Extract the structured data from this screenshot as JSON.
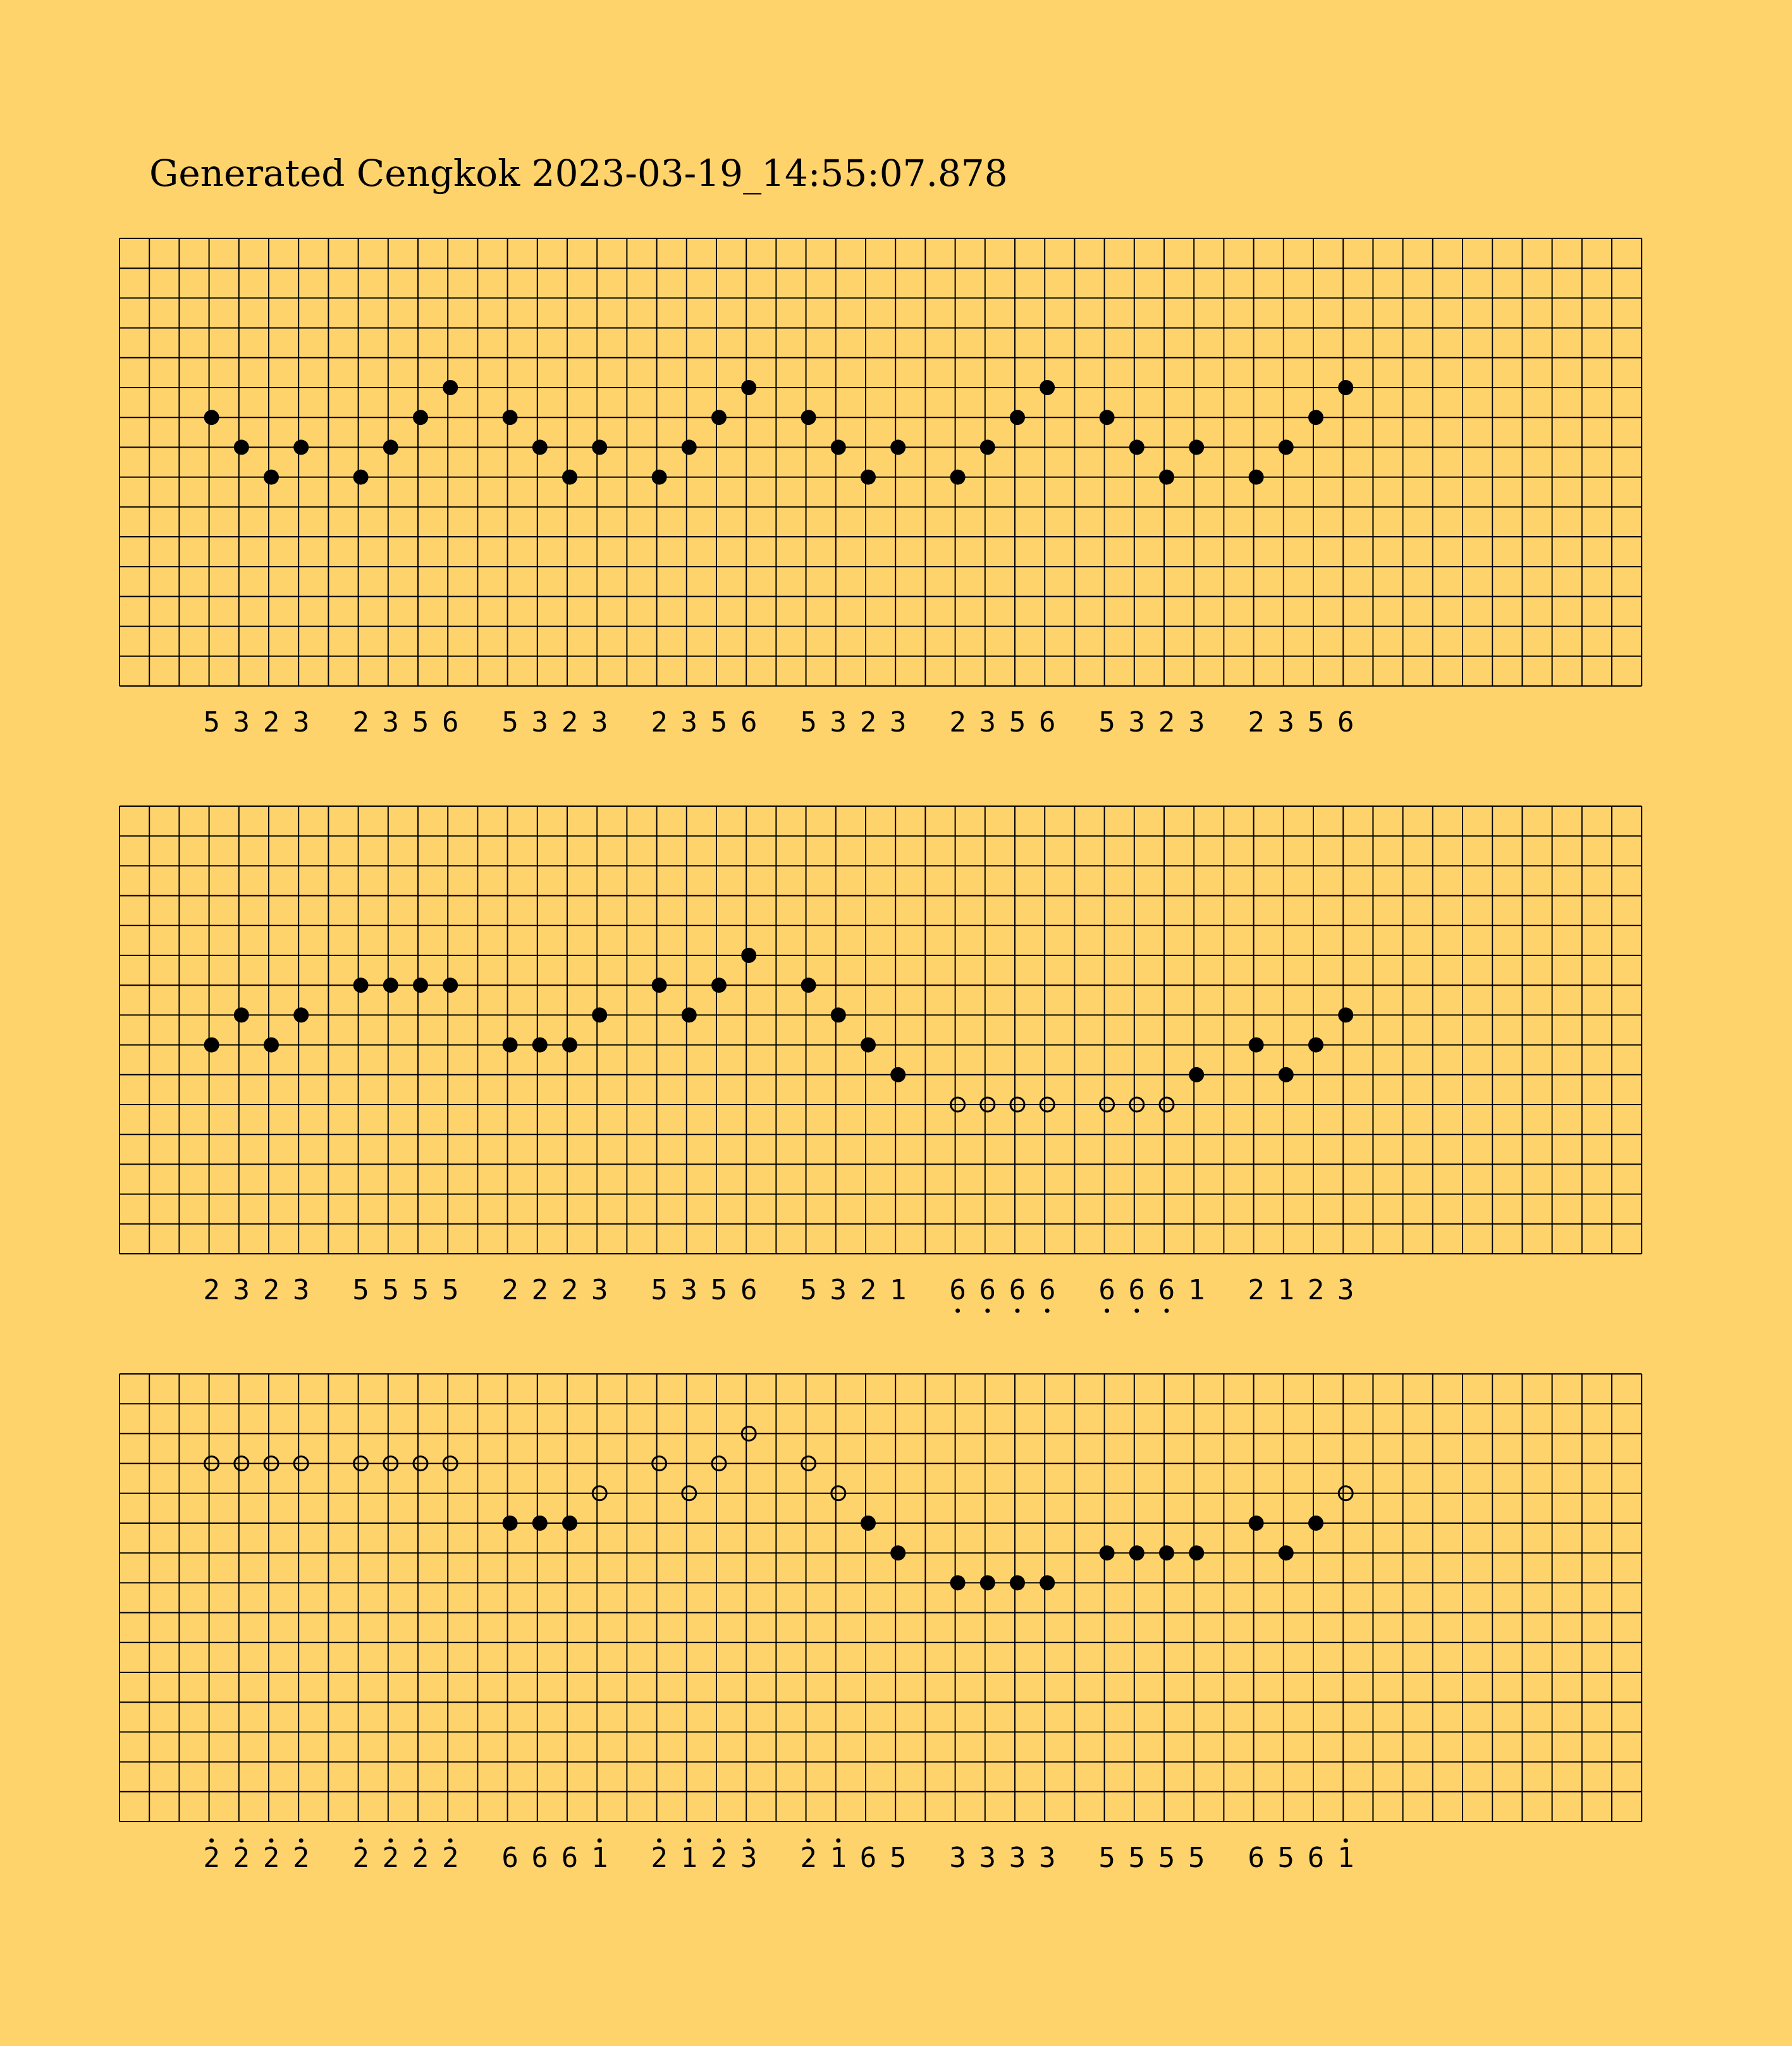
{
  "title": "Generated Cengkok 2023-03-19_14:55:07.878",
  "colors": {
    "background": "#ffd36b",
    "ink": "#000000"
  },
  "notation": {
    "octave_marks": {
      "above_dot": "high octave",
      "below_dot": "low octave"
    },
    "note_marker_style": {
      "filled": "filled-circle",
      "hollow": "hollow-circle"
    }
  },
  "staves": [
    {
      "groups": [
        {
          "notes": [
            {
              "digit": "5",
              "row": 6,
              "style": "filled",
              "octave": 0
            },
            {
              "digit": "3",
              "row": 7,
              "style": "filled",
              "octave": 0
            },
            {
              "digit": "2",
              "row": 8,
              "style": "filled",
              "octave": 0
            },
            {
              "digit": "3",
              "row": 7,
              "style": "filled",
              "octave": 0
            }
          ]
        },
        {
          "notes": [
            {
              "digit": "2",
              "row": 8,
              "style": "filled",
              "octave": 0
            },
            {
              "digit": "3",
              "row": 7,
              "style": "filled",
              "octave": 0
            },
            {
              "digit": "5",
              "row": 6,
              "style": "filled",
              "octave": 0
            },
            {
              "digit": "6",
              "row": 5,
              "style": "filled",
              "octave": 0
            }
          ]
        },
        {
          "notes": [
            {
              "digit": "5",
              "row": 6,
              "style": "filled",
              "octave": 0
            },
            {
              "digit": "3",
              "row": 7,
              "style": "filled",
              "octave": 0
            },
            {
              "digit": "2",
              "row": 8,
              "style": "filled",
              "octave": 0
            },
            {
              "digit": "3",
              "row": 7,
              "style": "filled",
              "octave": 0
            }
          ]
        },
        {
          "notes": [
            {
              "digit": "2",
              "row": 8,
              "style": "filled",
              "octave": 0
            },
            {
              "digit": "3",
              "row": 7,
              "style": "filled",
              "octave": 0
            },
            {
              "digit": "5",
              "row": 6,
              "style": "filled",
              "octave": 0
            },
            {
              "digit": "6",
              "row": 5,
              "style": "filled",
              "octave": 0
            }
          ]
        },
        {
          "notes": [
            {
              "digit": "5",
              "row": 6,
              "style": "filled",
              "octave": 0
            },
            {
              "digit": "3",
              "row": 7,
              "style": "filled",
              "octave": 0
            },
            {
              "digit": "2",
              "row": 8,
              "style": "filled",
              "octave": 0
            },
            {
              "digit": "3",
              "row": 7,
              "style": "filled",
              "octave": 0
            }
          ]
        },
        {
          "notes": [
            {
              "digit": "2",
              "row": 8,
              "style": "filled",
              "octave": 0
            },
            {
              "digit": "3",
              "row": 7,
              "style": "filled",
              "octave": 0
            },
            {
              "digit": "5",
              "row": 6,
              "style": "filled",
              "octave": 0
            },
            {
              "digit": "6",
              "row": 5,
              "style": "filled",
              "octave": 0
            }
          ]
        },
        {
          "notes": [
            {
              "digit": "5",
              "row": 6,
              "style": "filled",
              "octave": 0
            },
            {
              "digit": "3",
              "row": 7,
              "style": "filled",
              "octave": 0
            },
            {
              "digit": "2",
              "row": 8,
              "style": "filled",
              "octave": 0
            },
            {
              "digit": "3",
              "row": 7,
              "style": "filled",
              "octave": 0
            }
          ]
        },
        {
          "notes": [
            {
              "digit": "2",
              "row": 8,
              "style": "filled",
              "octave": 0
            },
            {
              "digit": "3",
              "row": 7,
              "style": "filled",
              "octave": 0
            },
            {
              "digit": "5",
              "row": 6,
              "style": "filled",
              "octave": 0
            },
            {
              "digit": "6",
              "row": 5,
              "style": "filled",
              "octave": 0
            }
          ]
        }
      ]
    },
    {
      "groups": [
        {
          "notes": [
            {
              "digit": "2",
              "row": 8,
              "style": "filled",
              "octave": 0
            },
            {
              "digit": "3",
              "row": 7,
              "style": "filled",
              "octave": 0
            },
            {
              "digit": "2",
              "row": 8,
              "style": "filled",
              "octave": 0
            },
            {
              "digit": "3",
              "row": 7,
              "style": "filled",
              "octave": 0
            }
          ]
        },
        {
          "notes": [
            {
              "digit": "5",
              "row": 6,
              "style": "filled",
              "octave": 0
            },
            {
              "digit": "5",
              "row": 6,
              "style": "filled",
              "octave": 0
            },
            {
              "digit": "5",
              "row": 6,
              "style": "filled",
              "octave": 0
            },
            {
              "digit": "5",
              "row": 6,
              "style": "filled",
              "octave": 0
            }
          ]
        },
        {
          "notes": [
            {
              "digit": "2",
              "row": 8,
              "style": "filled",
              "octave": 0
            },
            {
              "digit": "2",
              "row": 8,
              "style": "filled",
              "octave": 0
            },
            {
              "digit": "2",
              "row": 8,
              "style": "filled",
              "octave": 0
            },
            {
              "digit": "3",
              "row": 7,
              "style": "filled",
              "octave": 0
            }
          ]
        },
        {
          "notes": [
            {
              "digit": "5",
              "row": 6,
              "style": "filled",
              "octave": 0
            },
            {
              "digit": "3",
              "row": 7,
              "style": "filled",
              "octave": 0
            },
            {
              "digit": "5",
              "row": 6,
              "style": "filled",
              "octave": 0
            },
            {
              "digit": "6",
              "row": 5,
              "style": "filled",
              "octave": 0
            }
          ]
        },
        {
          "notes": [
            {
              "digit": "5",
              "row": 6,
              "style": "filled",
              "octave": 0
            },
            {
              "digit": "3",
              "row": 7,
              "style": "filled",
              "octave": 0
            },
            {
              "digit": "2",
              "row": 8,
              "style": "filled",
              "octave": 0
            },
            {
              "digit": "1",
              "row": 9,
              "style": "filled",
              "octave": 0
            }
          ]
        },
        {
          "notes": [
            {
              "digit": "6",
              "row": 10,
              "style": "hollow",
              "octave": -1
            },
            {
              "digit": "6",
              "row": 10,
              "style": "hollow",
              "octave": -1
            },
            {
              "digit": "6",
              "row": 10,
              "style": "hollow",
              "octave": -1
            },
            {
              "digit": "6",
              "row": 10,
              "style": "hollow",
              "octave": -1
            }
          ]
        },
        {
          "notes": [
            {
              "digit": "6",
              "row": 10,
              "style": "hollow",
              "octave": -1
            },
            {
              "digit": "6",
              "row": 10,
              "style": "hollow",
              "octave": -1
            },
            {
              "digit": "6",
              "row": 10,
              "style": "hollow",
              "octave": -1
            },
            {
              "digit": "1",
              "row": 9,
              "style": "filled",
              "octave": 0
            }
          ]
        },
        {
          "notes": [
            {
              "digit": "2",
              "row": 8,
              "style": "filled",
              "octave": 0
            },
            {
              "digit": "1",
              "row": 9,
              "style": "filled",
              "octave": 0
            },
            {
              "digit": "2",
              "row": 8,
              "style": "filled",
              "octave": 0
            },
            {
              "digit": "3",
              "row": 7,
              "style": "filled",
              "octave": 0
            }
          ]
        }
      ]
    },
    {
      "groups": [
        {
          "notes": [
            {
              "digit": "2",
              "row": 3,
              "style": "hollow",
              "octave": 1
            },
            {
              "digit": "2",
              "row": 3,
              "style": "hollow",
              "octave": 1
            },
            {
              "digit": "2",
              "row": 3,
              "style": "hollow",
              "octave": 1
            },
            {
              "digit": "2",
              "row": 3,
              "style": "hollow",
              "octave": 1
            }
          ]
        },
        {
          "notes": [
            {
              "digit": "2",
              "row": 3,
              "style": "hollow",
              "octave": 1
            },
            {
              "digit": "2",
              "row": 3,
              "style": "hollow",
              "octave": 1
            },
            {
              "digit": "2",
              "row": 3,
              "style": "hollow",
              "octave": 1
            },
            {
              "digit": "2",
              "row": 3,
              "style": "hollow",
              "octave": 1
            }
          ]
        },
        {
          "notes": [
            {
              "digit": "6",
              "row": 5,
              "style": "filled",
              "octave": 0
            },
            {
              "digit": "6",
              "row": 5,
              "style": "filled",
              "octave": 0
            },
            {
              "digit": "6",
              "row": 5,
              "style": "filled",
              "octave": 0
            },
            {
              "digit": "1",
              "row": 4,
              "style": "hollow",
              "octave": 1
            }
          ]
        },
        {
          "notes": [
            {
              "digit": "2",
              "row": 3,
              "style": "hollow",
              "octave": 1
            },
            {
              "digit": "1",
              "row": 4,
              "style": "hollow",
              "octave": 1
            },
            {
              "digit": "2",
              "row": 3,
              "style": "hollow",
              "octave": 1
            },
            {
              "digit": "3",
              "row": 2,
              "style": "hollow",
              "octave": 1
            }
          ]
        },
        {
          "notes": [
            {
              "digit": "2",
              "row": 3,
              "style": "hollow",
              "octave": 1
            },
            {
              "digit": "1",
              "row": 4,
              "style": "hollow",
              "octave": 1
            },
            {
              "digit": "6",
              "row": 5,
              "style": "filled",
              "octave": 0
            },
            {
              "digit": "5",
              "row": 6,
              "style": "filled",
              "octave": 0
            }
          ]
        },
        {
          "notes": [
            {
              "digit": "3",
              "row": 7,
              "style": "filled",
              "octave": 0
            },
            {
              "digit": "3",
              "row": 7,
              "style": "filled",
              "octave": 0
            },
            {
              "digit": "3",
              "row": 7,
              "style": "filled",
              "octave": 0
            },
            {
              "digit": "3",
              "row": 7,
              "style": "filled",
              "octave": 0
            }
          ]
        },
        {
          "notes": [
            {
              "digit": "5",
              "row": 6,
              "style": "filled",
              "octave": 0
            },
            {
              "digit": "5",
              "row": 6,
              "style": "filled",
              "octave": 0
            },
            {
              "digit": "5",
              "row": 6,
              "style": "filled",
              "octave": 0
            },
            {
              "digit": "5",
              "row": 6,
              "style": "filled",
              "octave": 0
            }
          ]
        },
        {
          "notes": [
            {
              "digit": "6",
              "row": 5,
              "style": "filled",
              "octave": 0
            },
            {
              "digit": "5",
              "row": 6,
              "style": "filled",
              "octave": 0
            },
            {
              "digit": "6",
              "row": 5,
              "style": "filled",
              "octave": 0
            },
            {
              "digit": "1",
              "row": 4,
              "style": "hollow",
              "octave": 1
            }
          ]
        }
      ]
    }
  ]
}
